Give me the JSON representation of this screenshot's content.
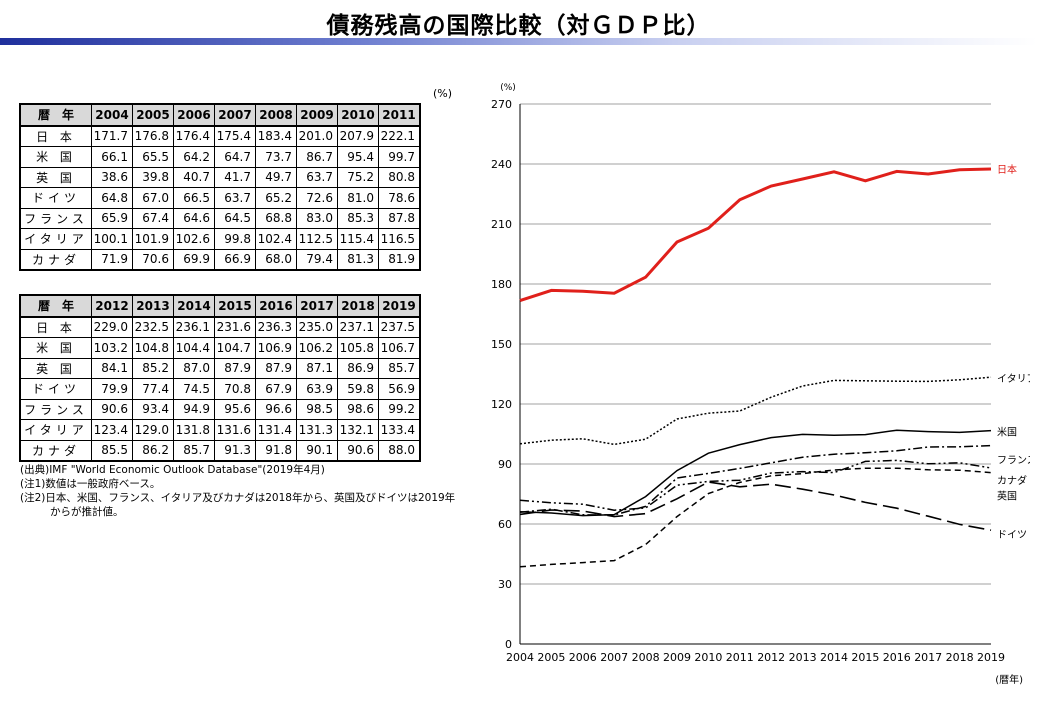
{
  "title": "債務残高の国際比較（対ＧＤＰ比）",
  "table_unit": "(%)",
  "tables": [
    {
      "header_label": "暦　年",
      "years": [
        "2004",
        "2005",
        "2006",
        "2007",
        "2008",
        "2009",
        "2010",
        "2011"
      ],
      "rows": [
        {
          "label": "日 本",
          "values": [
            "171.7",
            "176.8",
            "176.4",
            "175.4",
            "183.4",
            "201.0",
            "207.9",
            "222.1"
          ]
        },
        {
          "label": "米 国",
          "values": [
            "66.1",
            "65.5",
            "64.2",
            "64.7",
            "73.7",
            "86.7",
            "95.4",
            "99.7"
          ]
        },
        {
          "label": "英 国",
          "values": [
            "38.6",
            "39.8",
            "40.7",
            "41.7",
            "49.7",
            "63.7",
            "75.2",
            "80.8"
          ]
        },
        {
          "label": "ドイツ",
          "values": [
            "64.8",
            "67.0",
            "66.5",
            "63.7",
            "65.2",
            "72.6",
            "81.0",
            "78.6"
          ]
        },
        {
          "label": "フランス",
          "values": [
            "65.9",
            "67.4",
            "64.6",
            "64.5",
            "68.8",
            "83.0",
            "85.3",
            "87.8"
          ]
        },
        {
          "label": "イタリア",
          "values": [
            "100.1",
            "101.9",
            "102.6",
            "99.8",
            "102.4",
            "112.5",
            "115.4",
            "116.5"
          ]
        },
        {
          "label": "カナダ",
          "values": [
            "71.9",
            "70.6",
            "69.9",
            "66.9",
            "68.0",
            "79.4",
            "81.3",
            "81.9"
          ]
        }
      ]
    },
    {
      "header_label": "暦　年",
      "years": [
        "2012",
        "2013",
        "2014",
        "2015",
        "2016",
        "2017",
        "2018",
        "2019"
      ],
      "rows": [
        {
          "label": "日 本",
          "values": [
            "229.0",
            "232.5",
            "236.1",
            "231.6",
            "236.3",
            "235.0",
            "237.1",
            "237.5"
          ]
        },
        {
          "label": "米 国",
          "values": [
            "103.2",
            "104.8",
            "104.4",
            "104.7",
            "106.9",
            "106.2",
            "105.8",
            "106.7"
          ]
        },
        {
          "label": "英 国",
          "values": [
            "84.1",
            "85.2",
            "87.0",
            "87.9",
            "87.9",
            "87.1",
            "86.9",
            "85.7"
          ]
        },
        {
          "label": "ドイツ",
          "values": [
            "79.9",
            "77.4",
            "74.5",
            "70.8",
            "67.9",
            "63.9",
            "59.8",
            "56.9"
          ]
        },
        {
          "label": "フランス",
          "values": [
            "90.6",
            "93.4",
            "94.9",
            "95.6",
            "96.6",
            "98.5",
            "98.6",
            "99.2"
          ]
        },
        {
          "label": "イタリア",
          "values": [
            "123.4",
            "129.0",
            "131.8",
            "131.6",
            "131.4",
            "131.3",
            "132.1",
            "133.4"
          ]
        },
        {
          "label": "カナダ",
          "values": [
            "85.5",
            "86.2",
            "85.7",
            "91.3",
            "91.8",
            "90.1",
            "90.6",
            "88.0"
          ]
        }
      ]
    }
  ],
  "notes": {
    "source": "(出典)IMF \"World Economic Outlook Database\"(2019年4月)",
    "note1": "(注1)数値は一般政府ベース。",
    "note2a": "(注2)日本、米国、フランス、イタリア及びカナダは2018年から、英国及びドイツは2019年",
    "note2b": "からが推計値。"
  },
  "chart_data": {
    "type": "line",
    "y_unit": "(%)",
    "xlabel": "(暦年)",
    "ylim": [
      0,
      270
    ],
    "yticks": [
      0,
      30,
      60,
      90,
      120,
      150,
      180,
      210,
      240,
      270
    ],
    "grid": true,
    "x": [
      "2004",
      "2005",
      "2006",
      "2007",
      "2008",
      "2009",
      "2010",
      "2011",
      "2012",
      "2013",
      "2014",
      "2015",
      "2016",
      "2017",
      "2018",
      "2019"
    ],
    "series": [
      {
        "name": "日本",
        "color": "#e0201b",
        "style": "solid-thick",
        "values": [
          171.7,
          176.8,
          176.4,
          175.4,
          183.4,
          201.0,
          207.9,
          222.1,
          229.0,
          232.5,
          236.1,
          231.6,
          236.3,
          235.0,
          237.1,
          237.5
        ]
      },
      {
        "name": "イタリア",
        "color": "#000000",
        "style": "dotted",
        "values": [
          100.1,
          101.9,
          102.6,
          99.8,
          102.4,
          112.5,
          115.4,
          116.5,
          123.4,
          129.0,
          131.8,
          131.6,
          131.4,
          131.3,
          132.1,
          133.4
        ]
      },
      {
        "name": "米国",
        "color": "#000000",
        "style": "solid",
        "values": [
          66.1,
          65.5,
          64.2,
          64.7,
          73.7,
          86.7,
          95.4,
          99.7,
          103.2,
          104.8,
          104.4,
          104.7,
          106.9,
          106.2,
          105.8,
          106.7
        ]
      },
      {
        "name": "フランス",
        "color": "#000000",
        "style": "dashdot",
        "values": [
          65.9,
          67.4,
          64.6,
          64.5,
          68.8,
          83.0,
          85.3,
          87.8,
          90.6,
          93.4,
          94.9,
          95.6,
          96.6,
          98.5,
          98.6,
          99.2
        ]
      },
      {
        "name": "カナダ",
        "color": "#000000",
        "style": "dashdotdot",
        "values": [
          71.9,
          70.6,
          69.9,
          66.9,
          68.0,
          79.4,
          81.3,
          81.9,
          85.5,
          86.2,
          85.7,
          91.3,
          91.8,
          90.1,
          90.6,
          88.0
        ]
      },
      {
        "name": "英国",
        "color": "#000000",
        "style": "shortdash",
        "values": [
          38.6,
          39.8,
          40.7,
          41.7,
          49.7,
          63.7,
          75.2,
          80.8,
          84.1,
          85.2,
          87.0,
          87.9,
          87.9,
          87.1,
          86.9,
          85.7
        ]
      },
      {
        "name": "ドイツ",
        "color": "#000000",
        "style": "longdash",
        "values": [
          64.8,
          67.0,
          66.5,
          63.7,
          65.2,
          72.6,
          81.0,
          78.6,
          79.9,
          77.4,
          74.5,
          70.8,
          67.9,
          63.9,
          59.8,
          56.9
        ]
      }
    ]
  }
}
